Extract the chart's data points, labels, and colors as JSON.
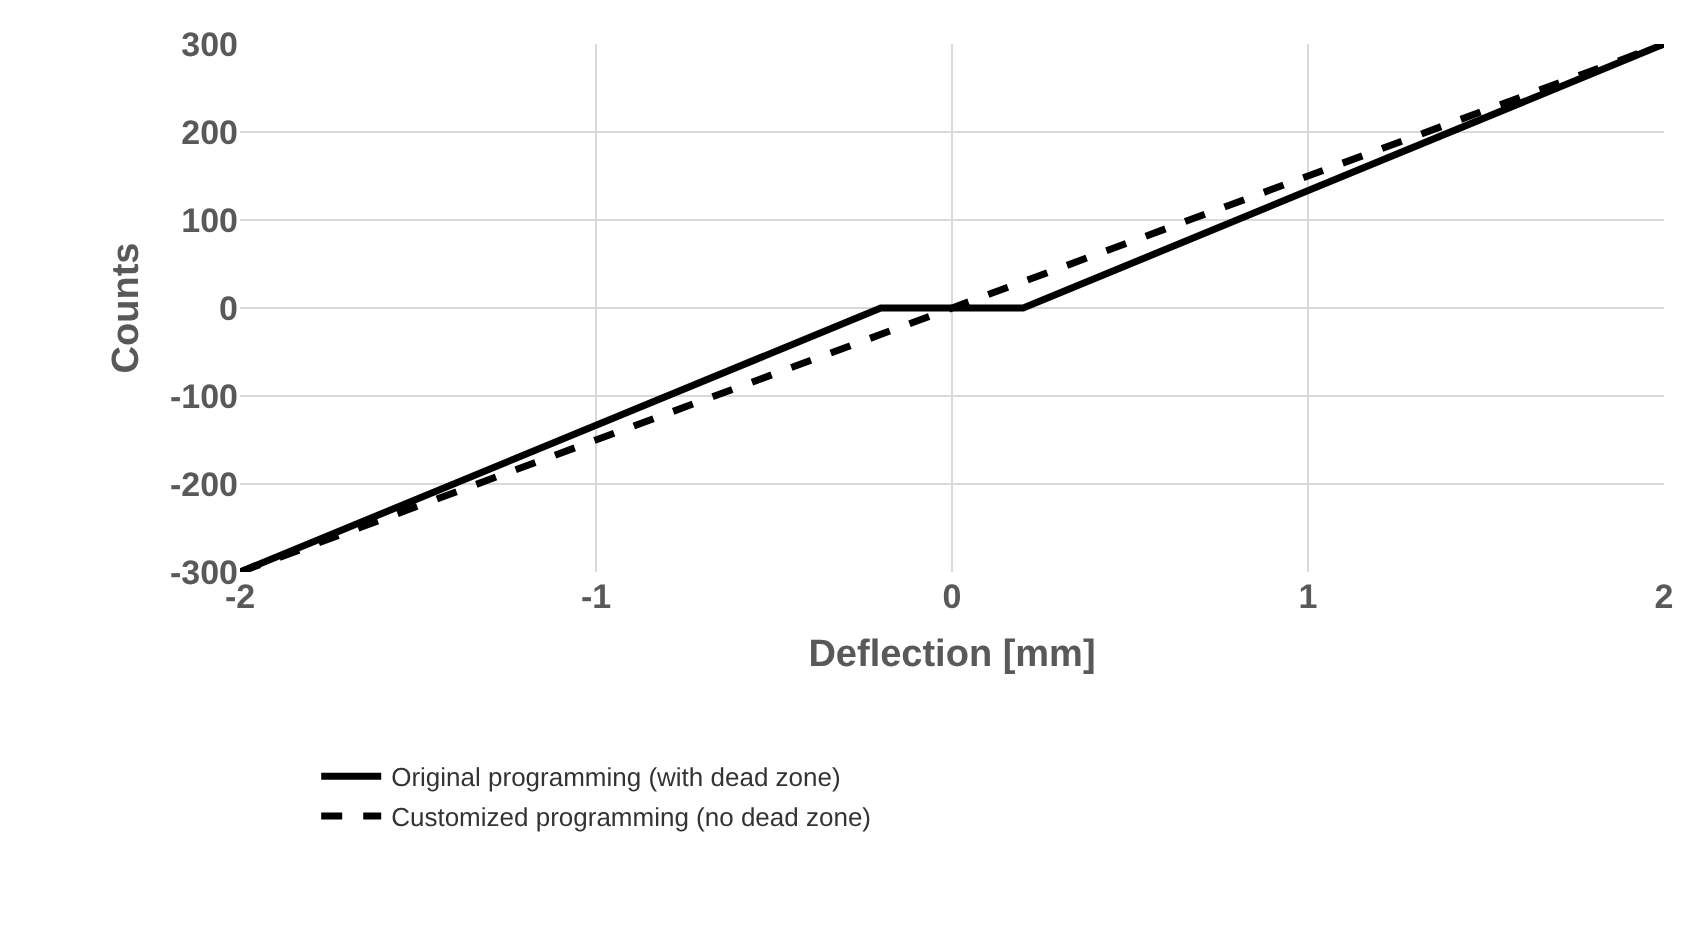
{
  "chart_data": {
    "type": "line",
    "xlabel": "Deflection [mm]",
    "ylabel": "Counts",
    "xlim": [
      -2,
      2
    ],
    "xticks": [
      -2,
      -1,
      0,
      1,
      2
    ],
    "ylim": [
      -300,
      300
    ],
    "yticks": [
      -300,
      -200,
      -100,
      0,
      100,
      200,
      300
    ],
    "grid": true,
    "legend": "bottom",
    "marker": "none",
    "series": [
      {
        "name": "Original programming (with dead zone)",
        "color": "#000000",
        "line_style": "solid",
        "x": [
          -2,
          -0.2,
          0.2,
          2
        ],
        "values": [
          -300,
          0,
          0,
          300
        ]
      },
      {
        "name": "Customized programming (no dead zone)",
        "color": "#000000",
        "line_style": "dashed",
        "x": [
          -2,
          2
        ],
        "values": [
          -300,
          300
        ]
      }
    ]
  }
}
